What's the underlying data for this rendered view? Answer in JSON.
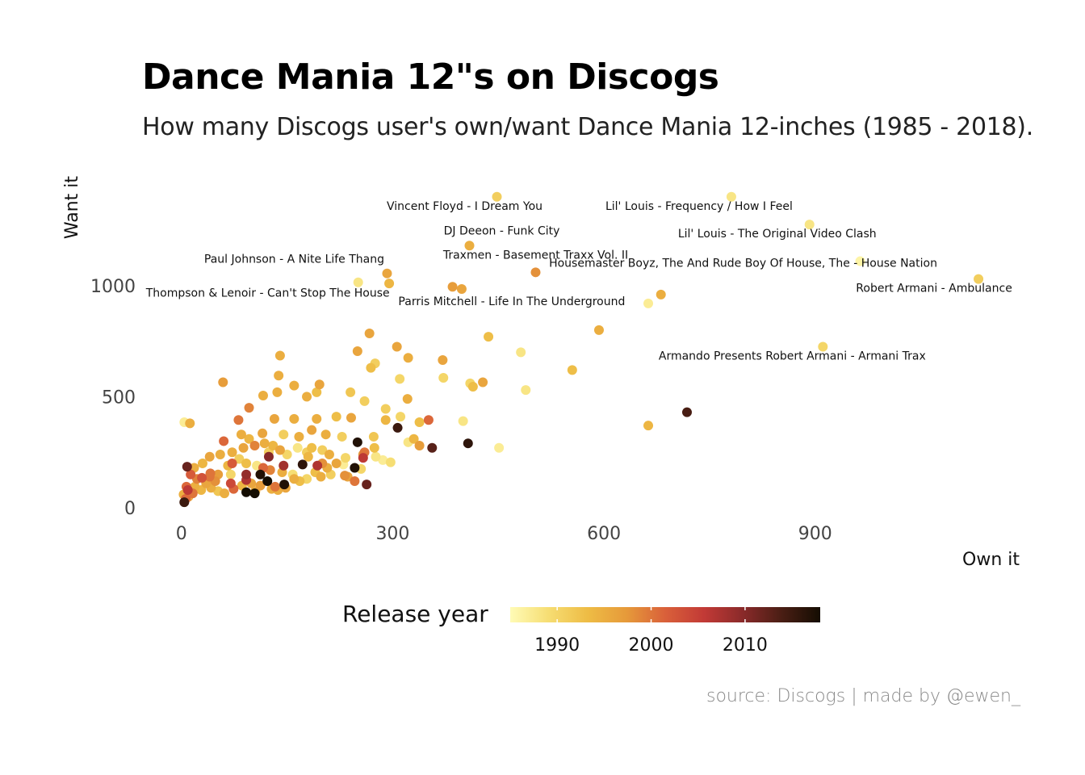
{
  "title": "Dance Mania 12\"s on Discogs",
  "subtitle": "How many Discogs user's own/want Dance Mania 12-inches (1985 - 2018).",
  "caption": "source: Discogs | made by @ewen_",
  "chart_data": {
    "type": "scatter",
    "xlabel": "Own it",
    "ylabel": "Want it",
    "xlim": [
      -25,
      1195
    ],
    "ylim": [
      -40,
      1450
    ],
    "xticks": [
      0,
      300,
      600,
      900
    ],
    "yticks": [
      0,
      500,
      1000
    ],
    "grid": false,
    "legend": {
      "title": "Release year",
      "ticks": [
        1990,
        2000,
        2010
      ],
      "range": [
        1985,
        2018
      ],
      "placement": "bottom"
    },
    "color_scale": [
      "#fffbb6",
      "#f6dd72",
      "#eebc45",
      "#e69a3a",
      "#d9603a",
      "#c23a36",
      "#8a2a2a",
      "#4a1e14",
      "#140d02"
    ],
    "labels": [
      {
        "text": "Vincent Floyd - I Dream You",
        "x": 448,
        "y": 1400,
        "year": 1991
      },
      {
        "text": "Lil' Louis - Frequency / How I Feel",
        "x": 781,
        "y": 1400,
        "year": 1988
      },
      {
        "text": "DJ Deeon - Funk City",
        "x": 409,
        "y": 1180,
        "year": 1995
      },
      {
        "text": "Lil' Louis - The Original Video Clash",
        "x": 892,
        "y": 1275,
        "year": 1988
      },
      {
        "text": "Paul Johnson - A Nite Life Thang",
        "x": 292,
        "y": 1055,
        "year": 1996
      },
      {
        "text": "Traxmen - Basement Traxx Vol. II",
        "x": 503,
        "y": 1060,
        "year": 1998
      },
      {
        "text": "Housemaster Boyz, The And Rude Boy Of House, The - House Nation",
        "x": 964,
        "y": 1110,
        "year": 1986
      },
      {
        "text": "Thompson & Lenoir - Can't Stop The House",
        "x": 251,
        "y": 1015,
        "year": 1988
      },
      {
        "text": "Parris Mitchell - Life In The Underground",
        "x": 398,
        "y": 985,
        "year": 1996
      },
      {
        "text": "Robert Armani - Ambulance",
        "x": 1132,
        "y": 1030,
        "year": 1991
      },
      {
        "text": "Armando Presents Robert Armani - Armani Trax",
        "x": 911,
        "y": 725,
        "year": 1990
      }
    ],
    "points": [
      {
        "x": 295,
        "y": 1010,
        "year": 1994
      },
      {
        "x": 385,
        "y": 995,
        "year": 1997
      },
      {
        "x": 681,
        "y": 960,
        "year": 1995
      },
      {
        "x": 663,
        "y": 920,
        "year": 1987
      },
      {
        "x": 593,
        "y": 800,
        "year": 1995
      },
      {
        "x": 436,
        "y": 770,
        "year": 1993
      },
      {
        "x": 267,
        "y": 785,
        "year": 1996
      },
      {
        "x": 482,
        "y": 700,
        "year": 1988
      },
      {
        "x": 555,
        "y": 620,
        "year": 1993
      },
      {
        "x": 489,
        "y": 530,
        "year": 1988
      },
      {
        "x": 663,
        "y": 370,
        "year": 1994
      },
      {
        "x": 718,
        "y": 430,
        "year": 2014
      },
      {
        "x": 451,
        "y": 270,
        "year": 1987
      },
      {
        "x": 407,
        "y": 290,
        "year": 2016
      },
      {
        "x": 356,
        "y": 270,
        "year": 2013
      },
      {
        "x": 307,
        "y": 360,
        "year": 2015
      },
      {
        "x": 250,
        "y": 295,
        "year": 2017
      },
      {
        "x": 246,
        "y": 180,
        "year": 2017
      },
      {
        "x": 263,
        "y": 105,
        "year": 2012
      },
      {
        "x": 112,
        "y": 150,
        "year": 2017
      },
      {
        "x": 92,
        "y": 70,
        "year": 2018
      },
      {
        "x": 104,
        "y": 65,
        "year": 2018
      },
      {
        "x": 4,
        "y": 25,
        "year": 2015
      },
      {
        "x": 8,
        "y": 185,
        "year": 2012
      },
      {
        "x": 172,
        "y": 195,
        "year": 2016
      },
      {
        "x": 146,
        "y": 105,
        "year": 2017
      },
      {
        "x": 122,
        "y": 120,
        "year": 2018
      },
      {
        "x": 9,
        "y": 80,
        "year": 2006
      },
      {
        "x": 92,
        "y": 125,
        "year": 2007
      },
      {
        "x": 145,
        "y": 190,
        "year": 2008
      },
      {
        "x": 193,
        "y": 190,
        "year": 2007
      },
      {
        "x": 258,
        "y": 225,
        "year": 2006
      },
      {
        "x": 12,
        "y": 380,
        "year": 1995
      },
      {
        "x": 4,
        "y": 385,
        "year": 1987
      },
      {
        "x": 140,
        "y": 685,
        "year": 1995
      },
      {
        "x": 59,
        "y": 565,
        "year": 1997
      },
      {
        "x": 138,
        "y": 595,
        "year": 1995
      },
      {
        "x": 250,
        "y": 705,
        "year": 1996
      },
      {
        "x": 306,
        "y": 725,
        "year": 1996
      },
      {
        "x": 322,
        "y": 675,
        "year": 1995
      },
      {
        "x": 275,
        "y": 650,
        "year": 1991
      },
      {
        "x": 269,
        "y": 630,
        "year": 1993
      },
      {
        "x": 371,
        "y": 665,
        "year": 1996
      },
      {
        "x": 310,
        "y": 580,
        "year": 1990
      },
      {
        "x": 372,
        "y": 585,
        "year": 1990
      },
      {
        "x": 410,
        "y": 560,
        "year": 1990
      },
      {
        "x": 414,
        "y": 545,
        "year": 1993
      },
      {
        "x": 428,
        "y": 565,
        "year": 1996
      },
      {
        "x": 240,
        "y": 520,
        "year": 1992
      },
      {
        "x": 260,
        "y": 480,
        "year": 1991
      },
      {
        "x": 290,
        "y": 445,
        "year": 1991
      },
      {
        "x": 321,
        "y": 490,
        "year": 1995
      },
      {
        "x": 196,
        "y": 555,
        "year": 1996
      },
      {
        "x": 160,
        "y": 550,
        "year": 1995
      },
      {
        "x": 192,
        "y": 520,
        "year": 1993
      },
      {
        "x": 178,
        "y": 500,
        "year": 1995
      },
      {
        "x": 136,
        "y": 520,
        "year": 1995
      },
      {
        "x": 116,
        "y": 505,
        "year": 1995
      },
      {
        "x": 96,
        "y": 450,
        "year": 1999
      },
      {
        "x": 81,
        "y": 395,
        "year": 2000
      },
      {
        "x": 132,
        "y": 400,
        "year": 1996
      },
      {
        "x": 160,
        "y": 400,
        "year": 1995
      },
      {
        "x": 192,
        "y": 400,
        "year": 1995
      },
      {
        "x": 220,
        "y": 410,
        "year": 1993
      },
      {
        "x": 241,
        "y": 405,
        "year": 1996
      },
      {
        "x": 290,
        "y": 395,
        "year": 1994
      },
      {
        "x": 311,
        "y": 410,
        "year": 1990
      },
      {
        "x": 338,
        "y": 385,
        "year": 1993
      },
      {
        "x": 351,
        "y": 395,
        "year": 2001
      },
      {
        "x": 400,
        "y": 390,
        "year": 1988
      },
      {
        "x": 330,
        "y": 310,
        "year": 1994
      },
      {
        "x": 322,
        "y": 295,
        "year": 1988
      },
      {
        "x": 274,
        "y": 270,
        "year": 1993
      },
      {
        "x": 260,
        "y": 250,
        "year": 2000
      },
      {
        "x": 233,
        "y": 225,
        "year": 1990
      },
      {
        "x": 220,
        "y": 200,
        "year": 1996
      },
      {
        "x": 207,
        "y": 180,
        "year": 1995
      },
      {
        "x": 190,
        "y": 160,
        "year": 1993
      },
      {
        "x": 158,
        "y": 150,
        "year": 1989
      },
      {
        "x": 143,
        "y": 160,
        "year": 1995
      },
      {
        "x": 126,
        "y": 170,
        "year": 1999
      },
      {
        "x": 116,
        "y": 180,
        "year": 2001
      },
      {
        "x": 107,
        "y": 190,
        "year": 1988
      },
      {
        "x": 92,
        "y": 200,
        "year": 1993
      },
      {
        "x": 72,
        "y": 200,
        "year": 2002
      },
      {
        "x": 66,
        "y": 190,
        "year": 1994
      },
      {
        "x": 52,
        "y": 150,
        "year": 1997
      },
      {
        "x": 40,
        "y": 140,
        "year": 2000
      },
      {
        "x": 22,
        "y": 130,
        "year": 1999
      },
      {
        "x": 13,
        "y": 150,
        "year": 2002
      },
      {
        "x": 7,
        "y": 95,
        "year": 2001
      },
      {
        "x": 3,
        "y": 60,
        "year": 1995
      },
      {
        "x": 6,
        "y": 40,
        "year": 2001
      },
      {
        "x": 10,
        "y": 50,
        "year": 1996
      },
      {
        "x": 28,
        "y": 80,
        "year": 1994
      },
      {
        "x": 42,
        "y": 90,
        "year": 1995
      },
      {
        "x": 52,
        "y": 75,
        "year": 1992
      },
      {
        "x": 61,
        "y": 65,
        "year": 1995
      },
      {
        "x": 74,
        "y": 85,
        "year": 2001
      },
      {
        "x": 86,
        "y": 100,
        "year": 1994
      },
      {
        "x": 99,
        "y": 110,
        "year": 1996
      },
      {
        "x": 112,
        "y": 100,
        "year": 1997
      },
      {
        "x": 128,
        "y": 85,
        "year": 1995
      },
      {
        "x": 137,
        "y": 80,
        "year": 1995
      },
      {
        "x": 148,
        "y": 90,
        "year": 1996
      },
      {
        "x": 168,
        "y": 120,
        "year": 1993
      },
      {
        "x": 178,
        "y": 130,
        "year": 1990
      },
      {
        "x": 198,
        "y": 140,
        "year": 1995
      },
      {
        "x": 212,
        "y": 150,
        "year": 1991
      },
      {
        "x": 236,
        "y": 140,
        "year": 1996
      },
      {
        "x": 246,
        "y": 120,
        "year": 2000
      },
      {
        "x": 276,
        "y": 230,
        "year": 1988
      },
      {
        "x": 286,
        "y": 215,
        "year": 1987
      },
      {
        "x": 255,
        "y": 175,
        "year": 1990
      },
      {
        "x": 230,
        "y": 195,
        "year": 1987
      },
      {
        "x": 210,
        "y": 240,
        "year": 1995
      },
      {
        "x": 200,
        "y": 260,
        "year": 1991
      },
      {
        "x": 185,
        "y": 270,
        "year": 1993
      },
      {
        "x": 165,
        "y": 270,
        "year": 1988
      },
      {
        "x": 150,
        "y": 240,
        "year": 1990
      },
      {
        "x": 140,
        "y": 260,
        "year": 1996
      },
      {
        "x": 130,
        "y": 280,
        "year": 1994
      },
      {
        "x": 118,
        "y": 290,
        "year": 1995
      },
      {
        "x": 104,
        "y": 280,
        "year": 1999
      },
      {
        "x": 88,
        "y": 270,
        "year": 1996
      },
      {
        "x": 72,
        "y": 250,
        "year": 1995
      },
      {
        "x": 55,
        "y": 240,
        "year": 1995
      },
      {
        "x": 40,
        "y": 230,
        "year": 1996
      },
      {
        "x": 30,
        "y": 200,
        "year": 1994
      },
      {
        "x": 18,
        "y": 180,
        "year": 1995
      },
      {
        "x": 60,
        "y": 300,
        "year": 2001
      },
      {
        "x": 85,
        "y": 330,
        "year": 1995
      },
      {
        "x": 96,
        "y": 310,
        "year": 1994
      },
      {
        "x": 115,
        "y": 335,
        "year": 1996
      },
      {
        "x": 145,
        "y": 330,
        "year": 1991
      },
      {
        "x": 167,
        "y": 320,
        "year": 1995
      },
      {
        "x": 185,
        "y": 350,
        "year": 1996
      },
      {
        "x": 205,
        "y": 330,
        "year": 1995
      },
      {
        "x": 228,
        "y": 320,
        "year": 1991
      },
      {
        "x": 273,
        "y": 320,
        "year": 1992
      },
      {
        "x": 338,
        "y": 280,
        "year": 1997
      },
      {
        "x": 297,
        "y": 205,
        "year": 1989
      },
      {
        "x": 258,
        "y": 240,
        "year": 1997
      },
      {
        "x": 232,
        "y": 145,
        "year": 1998
      },
      {
        "x": 160,
        "y": 130,
        "year": 1995
      },
      {
        "x": 180,
        "y": 230,
        "year": 1994
      },
      {
        "x": 124,
        "y": 250,
        "year": 1991
      },
      {
        "x": 82,
        "y": 220,
        "year": 1991
      },
      {
        "x": 70,
        "y": 150,
        "year": 1990
      },
      {
        "x": 48,
        "y": 120,
        "year": 1998
      },
      {
        "x": 35,
        "y": 110,
        "year": 1996
      },
      {
        "x": 19,
        "y": 95,
        "year": 1995
      },
      {
        "x": 16,
        "y": 65,
        "year": 2000
      },
      {
        "x": 105,
        "y": 75,
        "year": 1995
      },
      {
        "x": 133,
        "y": 95,
        "year": 2000
      },
      {
        "x": 124,
        "y": 230,
        "year": 2010
      },
      {
        "x": 92,
        "y": 150,
        "year": 2009
      },
      {
        "x": 70,
        "y": 110,
        "year": 2004
      },
      {
        "x": 29,
        "y": 135,
        "year": 2003
      },
      {
        "x": 41,
        "y": 155,
        "year": 2000
      },
      {
        "x": 200,
        "y": 200,
        "year": 1998
      },
      {
        "x": 178,
        "y": 250,
        "year": 1991
      }
    ]
  }
}
